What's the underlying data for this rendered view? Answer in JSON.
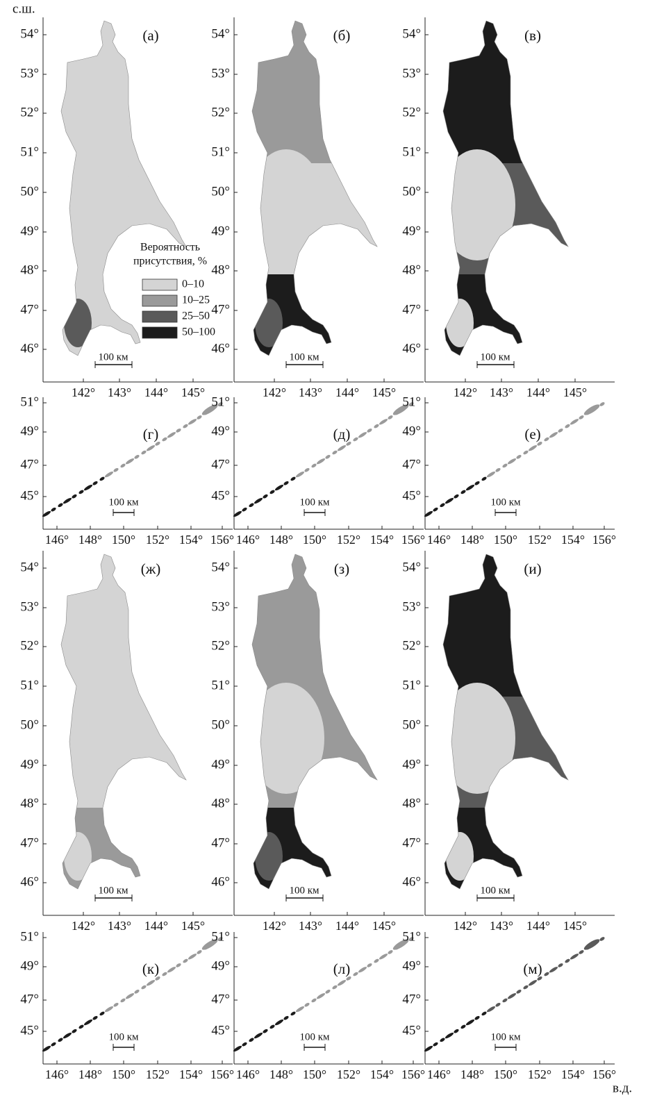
{
  "corner_labels": {
    "latitude": "с.ш.",
    "longitude": "в.д."
  },
  "sakhalin_axes": {
    "lat_ticks": [
      "54°",
      "53°",
      "52°",
      "51°",
      "50°",
      "49°",
      "48°",
      "47°",
      "46°"
    ],
    "lon_ticks": [
      "142°",
      "143°",
      "144°",
      "145°"
    ]
  },
  "kuril_axes": {
    "lat_ticks": [
      "51°",
      "49°",
      "47°",
      "45°"
    ],
    "lon_ticks": [
      "146°",
      "148°",
      "150°",
      "152°",
      "154°",
      "156°"
    ]
  },
  "scale_bar": "100 км",
  "panels": [
    [
      "(а)",
      "(б)",
      "(в)"
    ],
    [
      "(г)",
      "(д)",
      "(е)"
    ],
    [
      "(ж)",
      "(з)",
      "(и)"
    ],
    [
      "(к)",
      "(л)",
      "(м)"
    ]
  ],
  "legend": {
    "title_lines": [
      "Вероятность",
      "присутствия, %"
    ],
    "items": [
      {
        "label": "0–10",
        "color": "#d4d4d4"
      },
      {
        "label": "10–25",
        "color": "#9a9a9a"
      },
      {
        "label": "25–50",
        "color": "#5a5a5a"
      },
      {
        "label": "50–100",
        "color": "#1c1c1c"
      }
    ]
  }
}
